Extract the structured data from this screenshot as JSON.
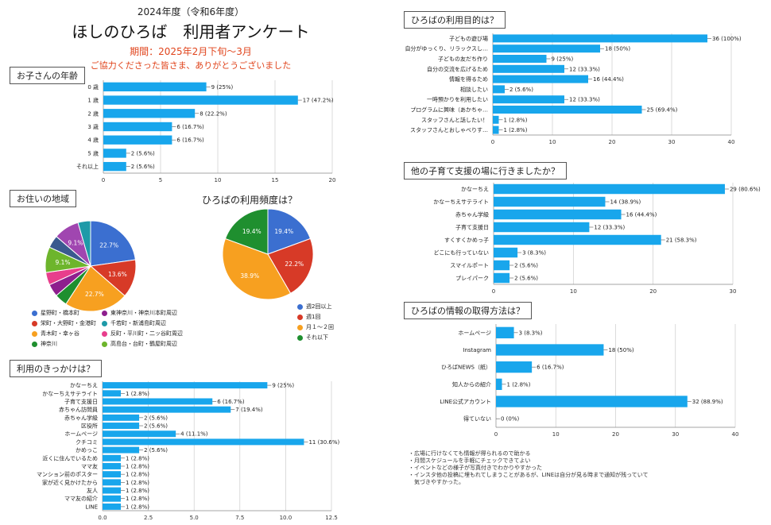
{
  "header": {
    "year_label": "2024年度（令和6年度）",
    "title": "ほしのひろば　利用者アンケート",
    "period": "期間：2025年2月下旬～3月",
    "thanks": "ご協力くださった皆さま、ありがとうございました"
  },
  "sections": {
    "age": "お子さんの年齢",
    "region": "お住いの地域",
    "frequency": "ひろばの利用頻度は？",
    "trigger": "利用のきっかけは？",
    "purpose": "ひろばの利用目的は？",
    "other_places": "他の子育て支援の場に行きましたか？",
    "info": "ひろばの情報の取得方法は？"
  },
  "colors": {
    "bar": "#18a6ec",
    "grid": "#cccccc"
  },
  "chart_data": [
    {
      "id": "age",
      "type": "bar",
      "orientation": "horizontal",
      "categories": [
        "0 歳",
        "1 歳",
        "2 歳",
        "3 歳",
        "4 歳",
        "5 歳",
        "それ以上"
      ],
      "values": [
        9,
        17,
        8,
        6,
        6,
        2,
        2
      ],
      "value_labels": [
        "9 (25%)",
        "17 (47.2%)",
        "8 (22.2%)",
        "6 (16.7%)",
        "6 (16.7%)",
        "2 (5.6%)",
        "2 (5.6%)"
      ],
      "xlim": [
        0,
        20
      ],
      "xticks": [
        "0",
        "5",
        "10",
        "15",
        "20"
      ],
      "grid": true
    },
    {
      "id": "region",
      "type": "pie",
      "slices": [
        {
          "label": "星野町・橋本町",
          "value": 22.7,
          "color": "#3b6fd0",
          "text": "22.7%"
        },
        {
          "label": "栄町・大野町・金港町",
          "value": 13.6,
          "color": "#d73a27",
          "text": "13.6%"
        },
        {
          "label": "青木町・幸ヶ谷",
          "value": 22.7,
          "color": "#f7a020",
          "text": "22.7%"
        },
        {
          "label": "神奈川",
          "value": 4.5,
          "color": "#1f8f2f",
          "text": ""
        },
        {
          "label": "東神奈川・神奈川本町周辺",
          "value": 4.5,
          "color": "#8e1f8e",
          "text": ""
        },
        {
          "label": "反町・平川町・二ッ谷町周辺",
          "value": 4.5,
          "color": "#e83e8c",
          "text": ""
        },
        {
          "label": "高島台・台町・鶴屋町周辺",
          "value": 9.1,
          "color": "#6db52c",
          "text": "9.1%"
        },
        {
          "label": "",
          "value": 4.5,
          "color": "#3a5a8f",
          "text": ""
        },
        {
          "label": "",
          "value": 9.1,
          "color": "#a046b0",
          "text": "9.1%"
        },
        {
          "label": "千若町・新浦島町周辺",
          "value": 4.5,
          "color": "#1e9aa8",
          "text": ""
        }
      ],
      "legend": [
        {
          "label": "星野町・橋本町",
          "color": "#3b6fd0"
        },
        {
          "label": "東神奈川・神奈川本町周辺",
          "color": "#8e1f8e"
        },
        {
          "label": "栄町・大野町・金港町",
          "color": "#d73a27"
        },
        {
          "label": "千若町・新浦島町周辺",
          "color": "#1e9aa8"
        },
        {
          "label": "青木町・幸ヶ谷",
          "color": "#f7a020"
        },
        {
          "label": "反町・平川町・二ッ谷町周辺",
          "color": "#e83e8c"
        },
        {
          "label": "神奈川",
          "color": "#1f8f2f"
        },
        {
          "label": "高島台・台町・鶴屋町周辺",
          "color": "#6db52c"
        }
      ]
    },
    {
      "id": "frequency",
      "type": "pie",
      "slices": [
        {
          "label": "週2回以上",
          "value": 19.4,
          "color": "#3b6fd0",
          "text": "19.4%"
        },
        {
          "label": "週1回",
          "value": 22.2,
          "color": "#d73a27",
          "text": "22.2%"
        },
        {
          "label": "月１～２回",
          "value": 38.9,
          "color": "#f7a020",
          "text": "38.9%"
        },
        {
          "label": "それ以下",
          "value": 19.4,
          "color": "#1f8f2f",
          "text": "19.4%"
        }
      ],
      "legend": [
        {
          "label": "週2回以上",
          "color": "#3b6fd0"
        },
        {
          "label": "週1回",
          "color": "#d73a27"
        },
        {
          "label": "月１～２回",
          "color": "#f7a020"
        },
        {
          "label": "それ以下",
          "color": "#1f8f2f"
        }
      ]
    },
    {
      "id": "trigger",
      "type": "bar",
      "orientation": "horizontal",
      "categories": [
        "かなーちえ",
        "かなーちえサテライト",
        "子育て支援日",
        "赤ちゃん訪問員",
        "赤ちゃん学級",
        "区役所",
        "ホームページ",
        "クチコミ",
        "かめっこ",
        "近くに住んでいるため",
        "ママ友",
        "マンション前のポスター",
        "家が近く見かけたから",
        "友人",
        "ママ友の紹介",
        "LINE"
      ],
      "values": [
        9,
        1,
        6,
        7,
        2,
        2,
        4,
        11,
        2,
        1,
        1,
        1,
        1,
        1,
        1,
        1
      ],
      "value_labels": [
        "9 (25%)",
        "1 (2.8%)",
        "6 (16.7%)",
        "7 (19.4%)",
        "2 (5.6%)",
        "2 (5.6%)",
        "4 (11.1%)",
        "11 (30.6%)",
        "2 (5.6%)",
        "1 (2.8%)",
        "1 (2.8%)",
        "1 (2.8%)",
        "1 (2.8%)",
        "1 (2.8%)",
        "1 (2.8%)",
        "1 (2.8%)"
      ],
      "xlim": [
        0,
        12.5
      ],
      "xticks": [
        "0.0",
        "2.5",
        "5.0",
        "7.5",
        "10.0",
        "12.5"
      ],
      "grid": true
    },
    {
      "id": "purpose",
      "type": "bar",
      "orientation": "horizontal",
      "categories": [
        "子どもの遊び場",
        "自分がゆっくり、リラックスし…",
        "子どもの友だち作り",
        "自分の交流を広げるため",
        "情報を得るため",
        "相談したい",
        "一時預かりを利用したい",
        "プログラムに興味（あかちゃ…",
        "スタッフさんと話したい！",
        "スタッフさんとおしゃべりす…"
      ],
      "values": [
        36,
        18,
        9,
        12,
        16,
        2,
        12,
        25,
        1,
        1
      ],
      "value_labels": [
        "36 (100%)",
        "18 (50%)",
        "9 (25%)",
        "12 (33.3%)",
        "16 (44.4%)",
        "2 (5.6%)",
        "12 (33.3%)",
        "25 (69.4%)",
        "1 (2.8%)",
        "1 (2.8%)"
      ],
      "xlim": [
        0,
        40
      ],
      "xticks": [
        "0",
        "10",
        "20",
        "30",
        "40"
      ],
      "grid": true
    },
    {
      "id": "other_places",
      "type": "bar",
      "orientation": "horizontal",
      "categories": [
        "かなーちえ",
        "かなーちえサテライト",
        "赤ちゃん学級",
        "子育て支援日",
        "すくすくかめっ子",
        "どこにも行っていない",
        "スマイルポート",
        "プレイパーク"
      ],
      "values": [
        29,
        14,
        16,
        12,
        21,
        3,
        2,
        2
      ],
      "value_labels": [
        "29 (80.6%)",
        "14 (38.9%)",
        "16 (44.4%)",
        "12 (33.3%)",
        "21 (58.3%)",
        "3 (8.3%)",
        "2 (5.6%)",
        "2 (5.6%)"
      ],
      "xlim": [
        0,
        30
      ],
      "xticks": [
        "0",
        "10",
        "20",
        "30"
      ],
      "grid": true
    },
    {
      "id": "info",
      "type": "bar",
      "orientation": "horizontal",
      "categories": [
        "ホームページ",
        "Instagram",
        "ひろばNEWS（紙）",
        "知人からの紹介",
        "LINE公式アカウント",
        "得ていない"
      ],
      "values": [
        3,
        18,
        6,
        1,
        32,
        0
      ],
      "value_labels": [
        "3 (8.3%)",
        "18 (50%)",
        "6 (16.7%)",
        "1 (2.8%)",
        "32 (88.9%)",
        "0 (0%)"
      ],
      "xlim": [
        0,
        40
      ],
      "xticks": [
        "0",
        "10",
        "20",
        "30",
        "40"
      ],
      "grid": true
    }
  ],
  "notes": [
    "・広場に行けなくても情報が得られるので助かる",
    "・月間スケジュールを手軽にチェックできてよい",
    "・イベントなどの様子が写真付きでわかりやすかった",
    "・インスタ他の投稿に埋もれてしまうことがあるが、LINEは自分が見る時まで通知が残っていて",
    "　気づきやすかった。"
  ]
}
